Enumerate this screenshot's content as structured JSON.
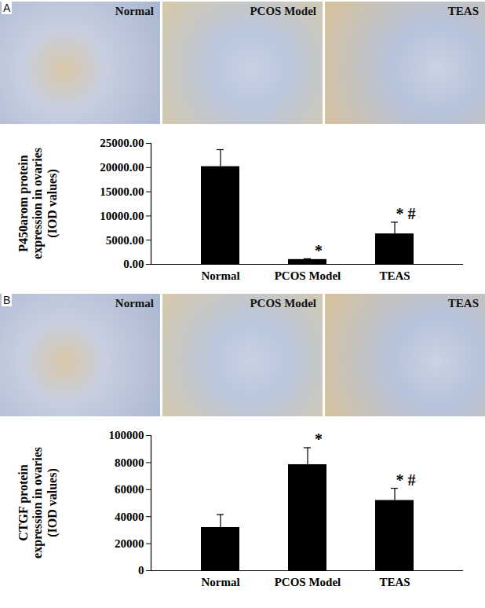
{
  "chart_data": [
    {
      "type": "bar",
      "panel": "A",
      "image_labels": [
        "Normal",
        "PCOS Model",
        "TEAS"
      ],
      "y_label": "P450arom protein\nexpression in ovaries\n(IOD values)",
      "categories": [
        "Normal",
        "PCOS Model",
        "TEAS"
      ],
      "values": [
        20200,
        1000,
        6300
      ],
      "errors": [
        3500,
        150,
        2400
      ],
      "significance": [
        null,
        "*",
        "* #"
      ],
      "color": "#000000",
      "ylim": [
        0,
        25000
      ],
      "yticks": [
        {
          "value": 0,
          "label": "0.00"
        },
        {
          "value": 5000,
          "label": "5000.00"
        },
        {
          "value": 10000,
          "label": "10000.00"
        },
        {
          "value": 15000,
          "label": "15000.00"
        },
        {
          "value": 20000,
          "label": "20000.00"
        },
        {
          "value": 25000,
          "label": "25000.00"
        }
      ]
    },
    {
      "type": "bar",
      "panel": "B",
      "image_labels": [
        "Normal",
        "PCOS Model",
        "TEAS"
      ],
      "y_label": "CTGF protein\nexpression in ovaries\n(IOD values)",
      "categories": [
        "Normal",
        "PCOS Model",
        "TEAS"
      ],
      "values": [
        32000,
        78500,
        52000
      ],
      "errors": [
        9500,
        12500,
        9000
      ],
      "significance": [
        null,
        "*",
        "* #"
      ],
      "color": "#000000",
      "ylim": [
        0,
        100000
      ],
      "yticks": [
        0,
        20000,
        40000,
        60000,
        80000,
        100000
      ]
    }
  ]
}
